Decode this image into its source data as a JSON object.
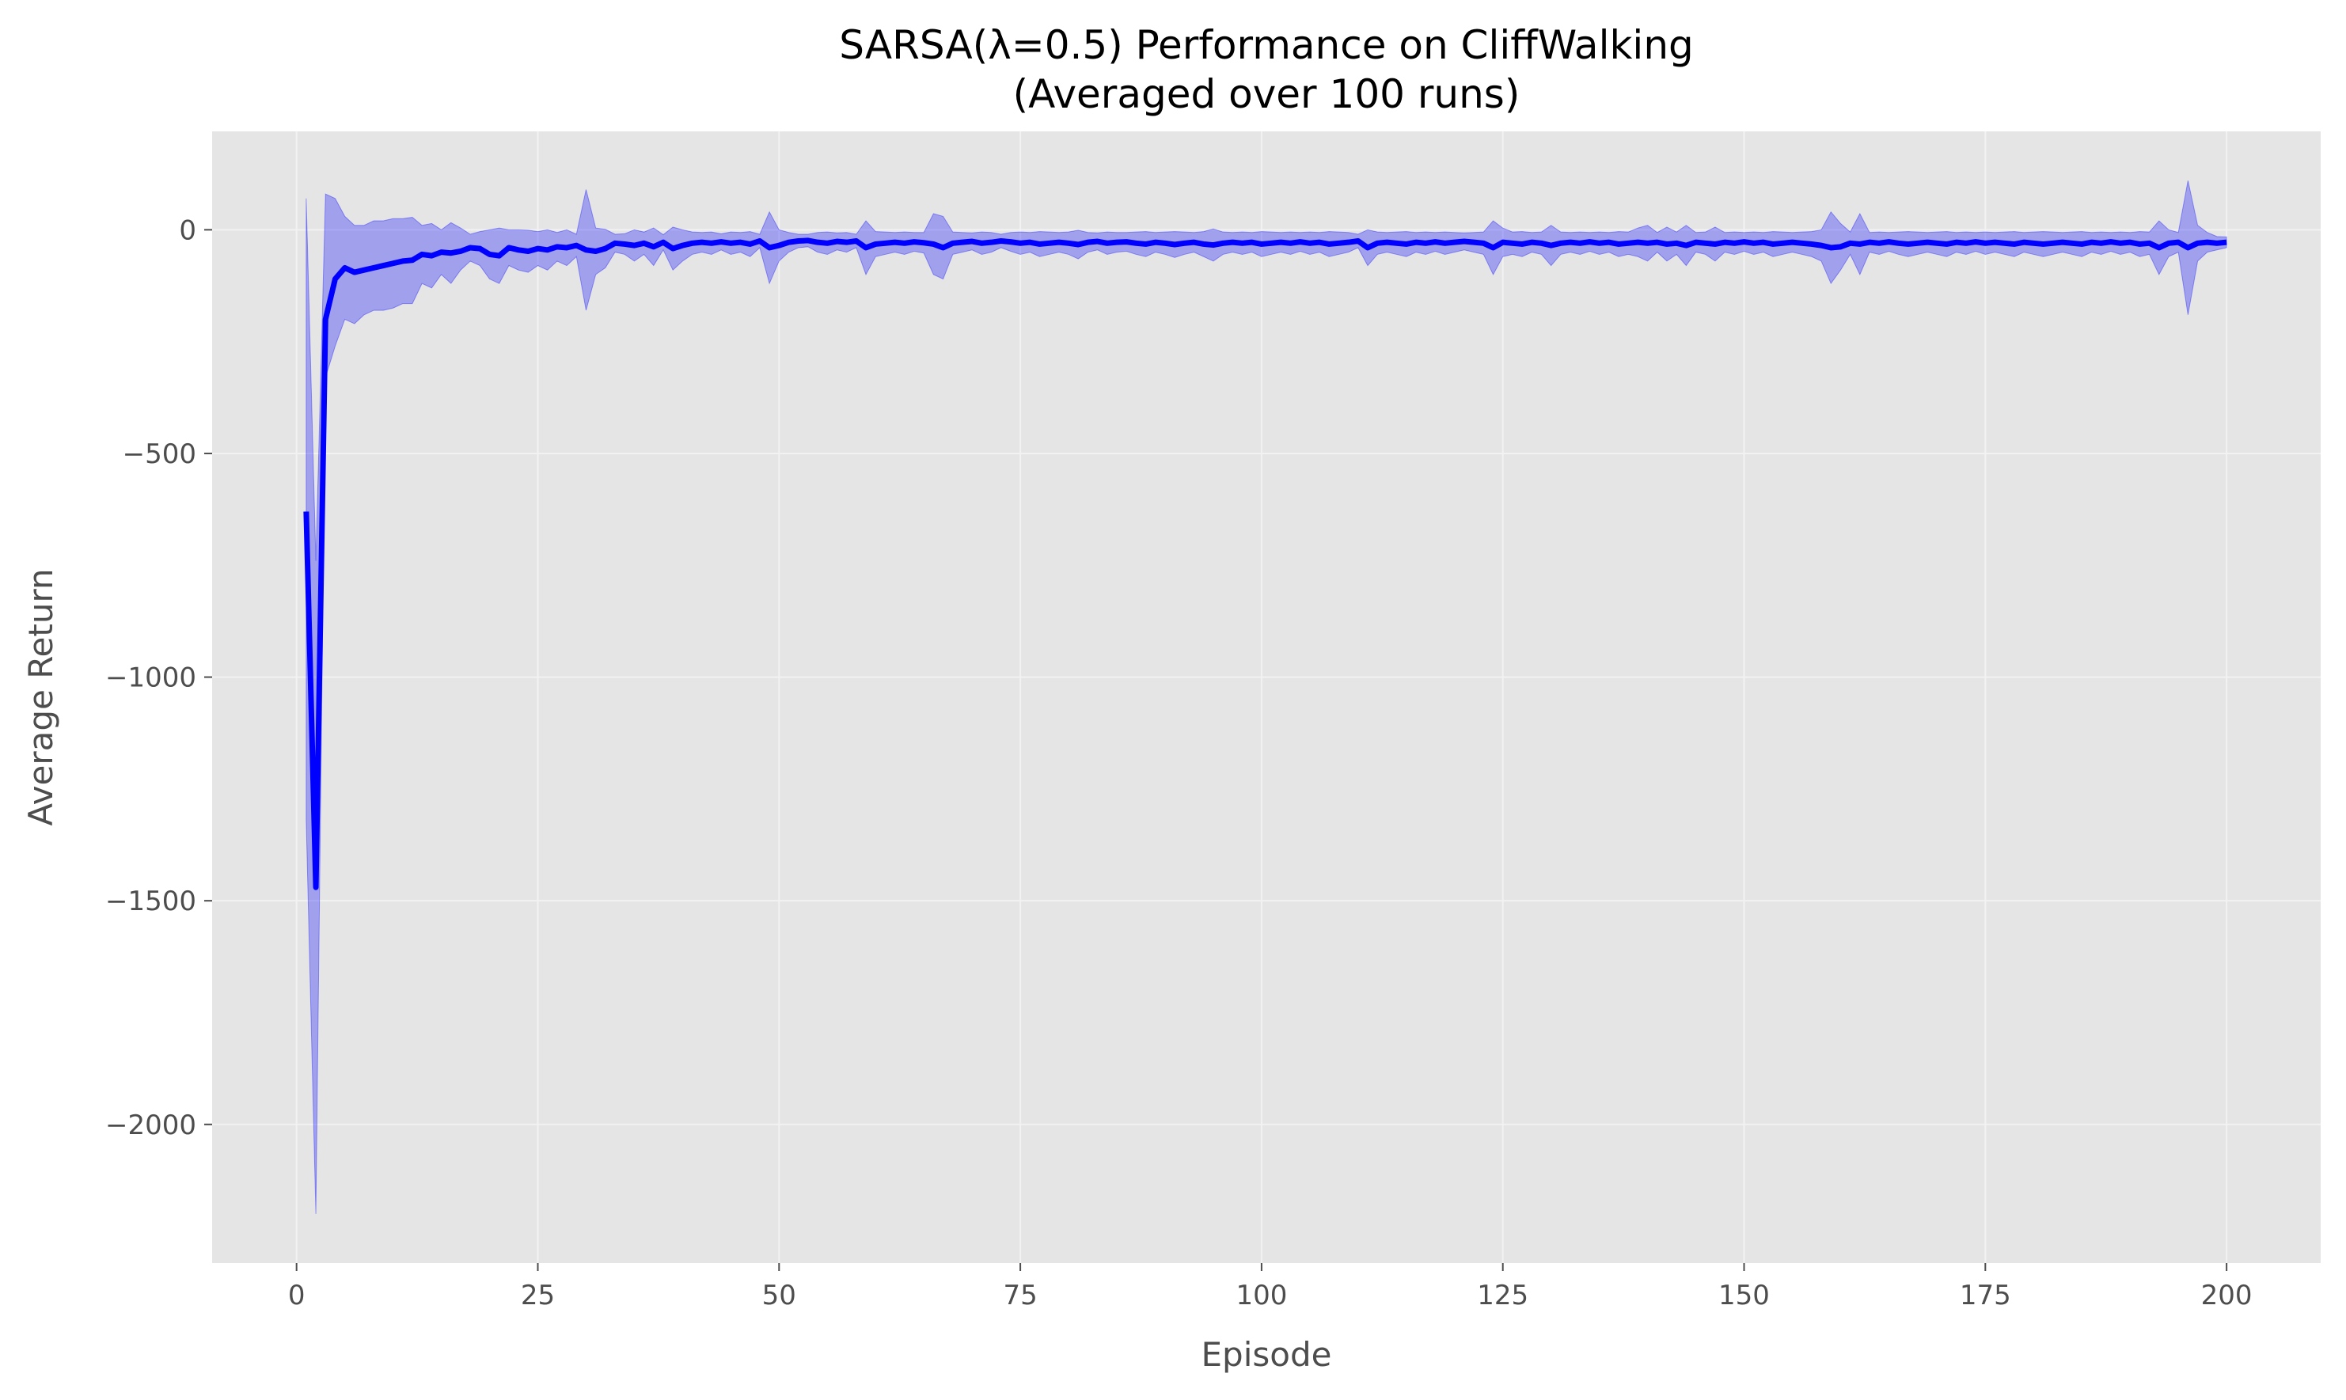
{
  "chart_data": {
    "type": "line",
    "title": "SARSA(λ=0.5) Performance on CliffWalking",
    "subtitle": "(Averaged over 100 runs)",
    "xlabel": "Episode",
    "ylabel": "Average Return",
    "xlim": [
      -8.75,
      209.75
    ],
    "ylim": [
      -2310,
      220
    ],
    "xticks": [
      0,
      25,
      50,
      75,
      100,
      125,
      150,
      175,
      200
    ],
    "yticks": [
      0,
      -500,
      -1000,
      -1500,
      -2000
    ],
    "xtick_labels": [
      "0",
      "25",
      "50",
      "75",
      "100",
      "125",
      "150",
      "175",
      "200"
    ],
    "ytick_labels": [
      "0",
      "−500",
      "−1000",
      "−1500",
      "−2000"
    ],
    "grid": true,
    "background_color": "#e5e5e5",
    "grid_color": "#f2f2f2",
    "series": [
      {
        "color": "#0000ff",
        "band_color": "#0000ff",
        "band_opacity": 0.3,
        "points": [
          [
            1,
            -630,
            -1320,
            70
          ],
          [
            2,
            -1470,
            -2200,
            -740
          ],
          [
            3,
            -200,
            -330,
            80
          ],
          [
            4,
            -110,
            -260,
            70
          ],
          [
            5,
            -85,
            -200,
            30
          ],
          [
            6,
            -95,
            -210,
            10
          ],
          [
            7,
            -90,
            -190,
            10
          ],
          [
            8,
            -85,
            -180,
            20
          ],
          [
            9,
            -80,
            -180,
            20
          ],
          [
            10,
            -75,
            -175,
            25
          ],
          [
            11,
            -70,
            -165,
            25
          ],
          [
            12,
            -68,
            -165,
            28
          ],
          [
            13,
            -55,
            -120,
            10
          ],
          [
            14,
            -58,
            -130,
            14
          ],
          [
            15,
            -50,
            -100,
            0
          ],
          [
            16,
            -52,
            -120,
            16
          ],
          [
            17,
            -48,
            -90,
            4
          ],
          [
            18,
            -40,
            -70,
            -10
          ],
          [
            19,
            -42,
            -80,
            -4
          ],
          [
            20,
            -55,
            -110,
            0
          ],
          [
            21,
            -58,
            -120,
            4
          ],
          [
            22,
            -40,
            -80,
            0
          ],
          [
            23,
            -45,
            -90,
            0
          ],
          [
            24,
            -48,
            -95,
            -1
          ],
          [
            25,
            -42,
            -80,
            -4
          ],
          [
            26,
            -45,
            -90,
            0
          ],
          [
            27,
            -38,
            -70,
            -6
          ],
          [
            28,
            -40,
            -80,
            0
          ],
          [
            29,
            -35,
            -60,
            -10
          ],
          [
            30,
            -45,
            -180,
            90
          ],
          [
            31,
            -48,
            -100,
            4
          ],
          [
            32,
            -42,
            -85,
            1
          ],
          [
            33,
            -30,
            -50,
            -10
          ],
          [
            34,
            -32,
            -55,
            -9
          ],
          [
            35,
            -35,
            -70,
            0
          ],
          [
            36,
            -30,
            -55,
            -5
          ],
          [
            37,
            -38,
            -80,
            4
          ],
          [
            38,
            -28,
            -45,
            -11
          ],
          [
            39,
            -42,
            -90,
            6
          ],
          [
            40,
            -35,
            -70,
            0
          ],
          [
            41,
            -30,
            -55,
            -5
          ],
          [
            42,
            -28,
            -50,
            -6
          ],
          [
            43,
            -30,
            -55,
            -5
          ],
          [
            44,
            -27,
            -45,
            -9
          ],
          [
            45,
            -30,
            -55,
            -5
          ],
          [
            46,
            -28,
            -50,
            -6
          ],
          [
            47,
            -32,
            -60,
            -4
          ],
          [
            48,
            -25,
            -40,
            -10
          ],
          [
            49,
            -40,
            -120,
            40
          ],
          [
            50,
            -35,
            -70,
            0
          ],
          [
            51,
            -28,
            -50,
            -6
          ],
          [
            52,
            -25,
            -40,
            -10
          ],
          [
            53,
            -24,
            -38,
            -10
          ],
          [
            54,
            -28,
            -50,
            -6
          ],
          [
            55,
            -30,
            -55,
            -5
          ],
          [
            56,
            -26,
            -45,
            -7
          ],
          [
            57,
            -28,
            -50,
            -6
          ],
          [
            58,
            -25,
            -40,
            -10
          ],
          [
            59,
            -40,
            -100,
            20
          ],
          [
            60,
            -32,
            -60,
            -4
          ],
          [
            61,
            -30,
            -55,
            -5
          ],
          [
            62,
            -28,
            -50,
            -6
          ],
          [
            63,
            -30,
            -55,
            -5
          ],
          [
            64,
            -27,
            -48,
            -6
          ],
          [
            65,
            -29,
            -52,
            -6
          ],
          [
            66,
            -32,
            -100,
            36
          ],
          [
            67,
            -40,
            -110,
            30
          ],
          [
            68,
            -30,
            -55,
            -5
          ],
          [
            69,
            -28,
            -50,
            -6
          ],
          [
            70,
            -26,
            -45,
            -7
          ],
          [
            71,
            -30,
            -55,
            -5
          ],
          [
            72,
            -28,
            -50,
            -6
          ],
          [
            73,
            -25,
            -40,
            -10
          ],
          [
            74,
            -27,
            -48,
            -6
          ],
          [
            75,
            -30,
            -55,
            -5
          ],
          [
            76,
            -28,
            -50,
            -6
          ],
          [
            77,
            -32,
            -60,
            -4
          ],
          [
            78,
            -30,
            -55,
            -5
          ],
          [
            79,
            -28,
            -50,
            -6
          ],
          [
            80,
            -30,
            -55,
            -5
          ],
          [
            81,
            -33,
            -65,
            -1
          ],
          [
            82,
            -28,
            -50,
            -6
          ],
          [
            83,
            -26,
            -45,
            -7
          ],
          [
            84,
            -30,
            -55,
            -5
          ],
          [
            85,
            -28,
            -50,
            -6
          ],
          [
            86,
            -27,
            -48,
            -6
          ],
          [
            87,
            -30,
            -55,
            -5
          ],
          [
            88,
            -32,
            -60,
            -4
          ],
          [
            89,
            -28,
            -50,
            -6
          ],
          [
            90,
            -30,
            -55,
            -5
          ],
          [
            91,
            -33,
            -62,
            -4
          ],
          [
            92,
            -30,
            -55,
            -5
          ],
          [
            93,
            -28,
            -50,
            -6
          ],
          [
            94,
            -32,
            -60,
            -4
          ],
          [
            95,
            -34,
            -70,
            2
          ],
          [
            96,
            -30,
            -55,
            -5
          ],
          [
            97,
            -28,
            -50,
            -6
          ],
          [
            98,
            -30,
            -55,
            -5
          ],
          [
            99,
            -28,
            -50,
            -6
          ],
          [
            100,
            -32,
            -60,
            -4
          ],
          [
            101,
            -30,
            -55,
            -5
          ],
          [
            102,
            -28,
            -50,
            -6
          ],
          [
            103,
            -30,
            -55,
            -5
          ],
          [
            104,
            -27,
            -48,
            -6
          ],
          [
            105,
            -30,
            -55,
            -5
          ],
          [
            106,
            -28,
            -50,
            -6
          ],
          [
            107,
            -32,
            -60,
            -4
          ],
          [
            108,
            -30,
            -55,
            -5
          ],
          [
            109,
            -28,
            -50,
            -6
          ],
          [
            110,
            -25,
            -40,
            -10
          ],
          [
            111,
            -40,
            -80,
            0
          ],
          [
            112,
            -30,
            -55,
            -5
          ],
          [
            113,
            -28,
            -50,
            -6
          ],
          [
            114,
            -30,
            -55,
            -5
          ],
          [
            115,
            -32,
            -60,
            -4
          ],
          [
            116,
            -28,
            -50,
            -6
          ],
          [
            117,
            -30,
            -55,
            -5
          ],
          [
            118,
            -27,
            -48,
            -6
          ],
          [
            119,
            -30,
            -55,
            -5
          ],
          [
            120,
            -28,
            -50,
            -6
          ],
          [
            121,
            -26,
            -45,
            -7
          ],
          [
            122,
            -28,
            -50,
            -6
          ],
          [
            123,
            -30,
            -55,
            -5
          ],
          [
            124,
            -40,
            -100,
            20
          ],
          [
            125,
            -28,
            -60,
            4
          ],
          [
            126,
            -30,
            -55,
            -5
          ],
          [
            127,
            -32,
            -60,
            -4
          ],
          [
            128,
            -28,
            -50,
            -6
          ],
          [
            129,
            -30,
            -55,
            -5
          ],
          [
            130,
            -35,
            -80,
            10
          ],
          [
            131,
            -30,
            -55,
            -5
          ],
          [
            132,
            -28,
            -50,
            -6
          ],
          [
            133,
            -30,
            -55,
            -5
          ],
          [
            134,
            -27,
            -48,
            -6
          ],
          [
            135,
            -30,
            -55,
            -5
          ],
          [
            136,
            -28,
            -50,
            -6
          ],
          [
            137,
            -32,
            -60,
            -4
          ],
          [
            138,
            -30,
            -55,
            -5
          ],
          [
            139,
            -28,
            -60,
            4
          ],
          [
            140,
            -30,
            -70,
            10
          ],
          [
            141,
            -28,
            -50,
            -6
          ],
          [
            142,
            -32,
            -70,
            6
          ],
          [
            143,
            -30,
            -55,
            -5
          ],
          [
            144,
            -35,
            -80,
            10
          ],
          [
            145,
            -28,
            -50,
            -6
          ],
          [
            146,
            -30,
            -55,
            -5
          ],
          [
            147,
            -32,
            -70,
            6
          ],
          [
            148,
            -28,
            -50,
            -6
          ],
          [
            149,
            -30,
            -55,
            -5
          ],
          [
            150,
            -27,
            -48,
            -6
          ],
          [
            151,
            -30,
            -55,
            -5
          ],
          [
            152,
            -28,
            -50,
            -6
          ],
          [
            153,
            -32,
            -60,
            -4
          ],
          [
            154,
            -30,
            -55,
            -5
          ],
          [
            155,
            -28,
            -50,
            -6
          ],
          [
            156,
            -30,
            -55,
            -5
          ],
          [
            157,
            -32,
            -60,
            -4
          ],
          [
            158,
            -35,
            -70,
            0
          ],
          [
            159,
            -40,
            -120,
            40
          ],
          [
            160,
            -38,
            -90,
            14
          ],
          [
            161,
            -30,
            -55,
            -5
          ],
          [
            162,
            -32,
            -100,
            36
          ],
          [
            163,
            -28,
            -50,
            -6
          ],
          [
            164,
            -30,
            -55,
            -5
          ],
          [
            165,
            -27,
            -48,
            -6
          ],
          [
            166,
            -30,
            -55,
            -5
          ],
          [
            167,
            -32,
            -60,
            -4
          ],
          [
            168,
            -30,
            -55,
            -5
          ],
          [
            169,
            -28,
            -50,
            -6
          ],
          [
            170,
            -30,
            -55,
            -5
          ],
          [
            171,
            -32,
            -60,
            -4
          ],
          [
            172,
            -28,
            -50,
            -6
          ],
          [
            173,
            -30,
            -55,
            -5
          ],
          [
            174,
            -27,
            -48,
            -6
          ],
          [
            175,
            -30,
            -55,
            -5
          ],
          [
            176,
            -28,
            -50,
            -6
          ],
          [
            177,
            -30,
            -55,
            -5
          ],
          [
            178,
            -32,
            -60,
            -4
          ],
          [
            179,
            -28,
            -50,
            -6
          ],
          [
            180,
            -30,
            -55,
            -5
          ],
          [
            181,
            -32,
            -60,
            -4
          ],
          [
            182,
            -30,
            -55,
            -5
          ],
          [
            183,
            -28,
            -50,
            -6
          ],
          [
            184,
            -30,
            -55,
            -5
          ],
          [
            185,
            -32,
            -60,
            -4
          ],
          [
            186,
            -28,
            -50,
            -6
          ],
          [
            187,
            -30,
            -55,
            -5
          ],
          [
            188,
            -27,
            -48,
            -6
          ],
          [
            189,
            -30,
            -55,
            -5
          ],
          [
            190,
            -28,
            -50,
            -6
          ],
          [
            191,
            -32,
            -60,
            -4
          ],
          [
            192,
            -30,
            -55,
            -5
          ],
          [
            193,
            -40,
            -100,
            20
          ],
          [
            194,
            -30,
            -60,
            0
          ],
          [
            195,
            -28,
            -50,
            -6
          ],
          [
            196,
            -40,
            -190,
            110
          ],
          [
            197,
            -30,
            -70,
            10
          ],
          [
            198,
            -28,
            -50,
            -6
          ],
          [
            199,
            -30,
            -45,
            -15
          ],
          [
            200,
            -28,
            -40,
            -16
          ]
        ]
      }
    ]
  }
}
